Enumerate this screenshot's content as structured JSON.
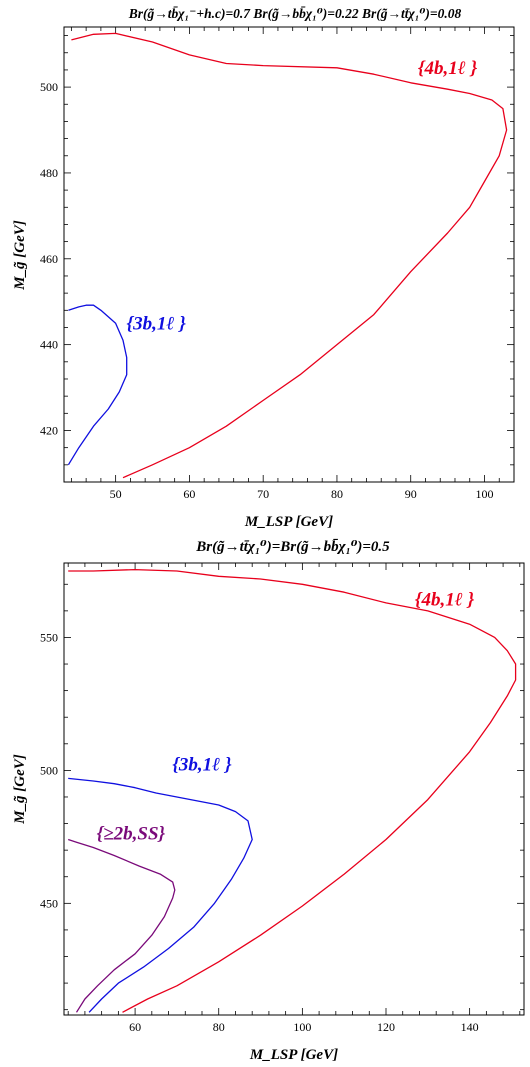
{
  "chart_data": [
    {
      "type": "line",
      "title": "Br(g̃→tb̄χ₁⁻+h.c)=0.7  Br(g̃→bb̄χ₁⁰)=0.22  Br(g̃→tt̄χ₁⁰)=0.08",
      "xlabel": "M_LSP  [GeV]",
      "ylabel": "M_g̃  [GeV]",
      "xlim": [
        43,
        104
      ],
      "ylim": [
        408,
        514
      ],
      "xticks": [
        50,
        60,
        70,
        80,
        90,
        100
      ],
      "yticks": [
        420,
        440,
        460,
        480,
        500
      ],
      "grid": false,
      "series": [
        {
          "name": "{4b,1ℓ}",
          "color": "#e8001c",
          "points": [
            [
              51,
              409
            ],
            [
              55,
              412
            ],
            [
              60,
              416
            ],
            [
              65,
              421
            ],
            [
              70,
              427
            ],
            [
              75,
              433
            ],
            [
              80,
              440
            ],
            [
              85,
              447
            ],
            [
              90,
              457
            ],
            [
              95,
              466
            ],
            [
              98,
              472
            ],
            [
              100,
              478
            ],
            [
              102,
              484
            ],
            [
              103,
              490
            ],
            [
              102.5,
              495
            ],
            [
              101,
              497
            ],
            [
              98,
              498.5
            ],
            [
              95,
              499.5
            ],
            [
              90,
              501
            ],
            [
              85,
              503
            ],
            [
              80,
              504.5
            ],
            [
              70,
              505
            ],
            [
              65,
              505.5
            ],
            [
              60,
              507.5
            ],
            [
              55,
              510.5
            ],
            [
              50,
              512.5
            ],
            [
              47,
              512.3
            ],
            [
              44,
              511
            ]
          ]
        },
        {
          "name": "{3b,1ℓ}",
          "color": "#1010e0",
          "points": [
            [
              43.6,
              412
            ],
            [
              45,
              416
            ],
            [
              47,
              421
            ],
            [
              49,
              425
            ],
            [
              50.5,
              429
            ],
            [
              51.5,
              433
            ],
            [
              51.5,
              437
            ],
            [
              51,
              441
            ],
            [
              50,
              445
            ],
            [
              48,
              448
            ],
            [
              47,
              449.2
            ],
            [
              46,
              449.2
            ],
            [
              45,
              448.8
            ],
            [
              43.6,
              448
            ]
          ]
        }
      ],
      "labels": [
        {
          "text": "{4b,1ℓ }",
          "x": 95,
          "y": 503,
          "color": "#e8001c"
        },
        {
          "text": "{3b,1ℓ }",
          "x": 55.5,
          "y": 443.5,
          "color": "#1010e0"
        }
      ]
    },
    {
      "type": "line",
      "title": "Br(g̃→tt̄χ₁⁰)=Br(g̃→bb̄χ₁⁰)=0.5",
      "xlabel": "M_LSP  [GeV]",
      "ylabel": "M_g̃  [GeV]",
      "xlim": [
        43,
        153
      ],
      "ylim": [
        408,
        578
      ],
      "xticks": [
        60,
        80,
        100,
        120,
        140
      ],
      "yticks": [
        450,
        500,
        550
      ],
      "grid": false,
      "series": [
        {
          "name": "{4b,1ℓ}",
          "color": "#e8001c",
          "points": [
            [
              57,
              409
            ],
            [
              63,
              414
            ],
            [
              70,
              419
            ],
            [
              80,
              428
            ],
            [
              90,
              438
            ],
            [
              100,
              449
            ],
            [
              110,
              461
            ],
            [
              120,
              474
            ],
            [
              130,
              489
            ],
            [
              140,
              507
            ],
            [
              145,
              518
            ],
            [
              149,
              528
            ],
            [
              151,
              534
            ],
            [
              151,
              540
            ],
            [
              149,
              545
            ],
            [
              146,
              550
            ],
            [
              140,
              555
            ],
            [
              130,
              560
            ],
            [
              120,
              563
            ],
            [
              110,
              567
            ],
            [
              100,
              570
            ],
            [
              90,
              572
            ],
            [
              80,
              573
            ],
            [
              70,
              575
            ],
            [
              60,
              575.5
            ],
            [
              50,
              575
            ],
            [
              44,
              575
            ]
          ]
        },
        {
          "name": "{3b,1ℓ}",
          "color": "#1010e0",
          "points": [
            [
              49,
              409
            ],
            [
              52,
              414
            ],
            [
              56,
              420
            ],
            [
              62,
              426
            ],
            [
              68,
              433
            ],
            [
              74,
              441
            ],
            [
              79,
              450
            ],
            [
              83,
              459
            ],
            [
              86,
              467
            ],
            [
              88,
              474
            ],
            [
              87,
              481
            ],
            [
              84,
              484.5
            ],
            [
              80,
              487
            ],
            [
              75,
              488.5
            ],
            [
              70,
              490
            ],
            [
              65,
              491.5
            ],
            [
              60,
              493.5
            ],
            [
              55,
              495
            ],
            [
              50,
              496
            ],
            [
              44,
              497
            ]
          ]
        },
        {
          "name": "{≥2b,SS}",
          "color": "#7a0a7a",
          "points": [
            [
              46,
              409
            ],
            [
              48,
              414
            ],
            [
              51,
              419
            ],
            [
              55,
              425
            ],
            [
              60,
              431
            ],
            [
              64,
              438
            ],
            [
              67,
              445
            ],
            [
              69,
              452
            ],
            [
              69.5,
              455
            ],
            [
              69,
              458
            ],
            [
              66,
              461
            ],
            [
              61,
              464
            ],
            [
              55,
              468
            ],
            [
              50,
              471
            ],
            [
              46,
              473
            ],
            [
              44,
              474
            ]
          ]
        }
      ],
      "labels": [
        {
          "text": "{4b,1ℓ }",
          "x": 134,
          "y": 562,
          "color": "#e8001c"
        },
        {
          "text": "{3b,1ℓ }",
          "x": 76,
          "y": 500,
          "color": "#1010e0"
        },
        {
          "text": "{≥2b,SS}",
          "x": 59,
          "y": 474,
          "color": "#7a0a7a"
        }
      ]
    }
  ]
}
